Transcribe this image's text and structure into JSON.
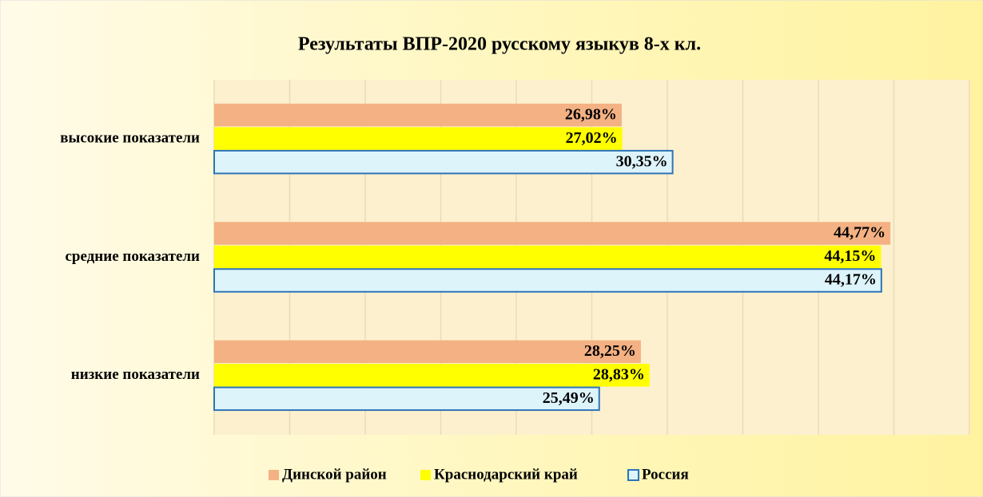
{
  "chart_data": {
    "type": "hbar",
    "title": "Результаты ВПР-2020 русскому языкув 8-х кл.",
    "categories": [
      "высокие показатели",
      "средние показатели",
      "низкие показатели"
    ],
    "series": [
      {
        "name": "Динской район",
        "color": "#f4b183",
        "values": [
          26.98,
          44.77,
          28.25
        ],
        "value_labels": [
          "26,98%",
          "44,77%",
          "28,25%"
        ]
      },
      {
        "name": "Краснодарский край",
        "color": "#ffff00",
        "values": [
          27.02,
          44.15,
          28.83
        ],
        "value_labels": [
          "27,02%",
          "44,15%",
          "28,83%"
        ]
      },
      {
        "name": "Россия",
        "color": "#ddf4fb",
        "values": [
          30.35,
          44.17,
          25.49
        ],
        "value_labels": [
          "30,35%",
          "44,17%",
          "25,49%"
        ]
      }
    ],
    "xlim": [
      0,
      50
    ],
    "xticks": [
      0,
      5,
      10,
      15,
      20,
      25,
      30,
      35,
      40,
      45,
      50
    ],
    "grid": true,
    "legend": "bottom"
  }
}
